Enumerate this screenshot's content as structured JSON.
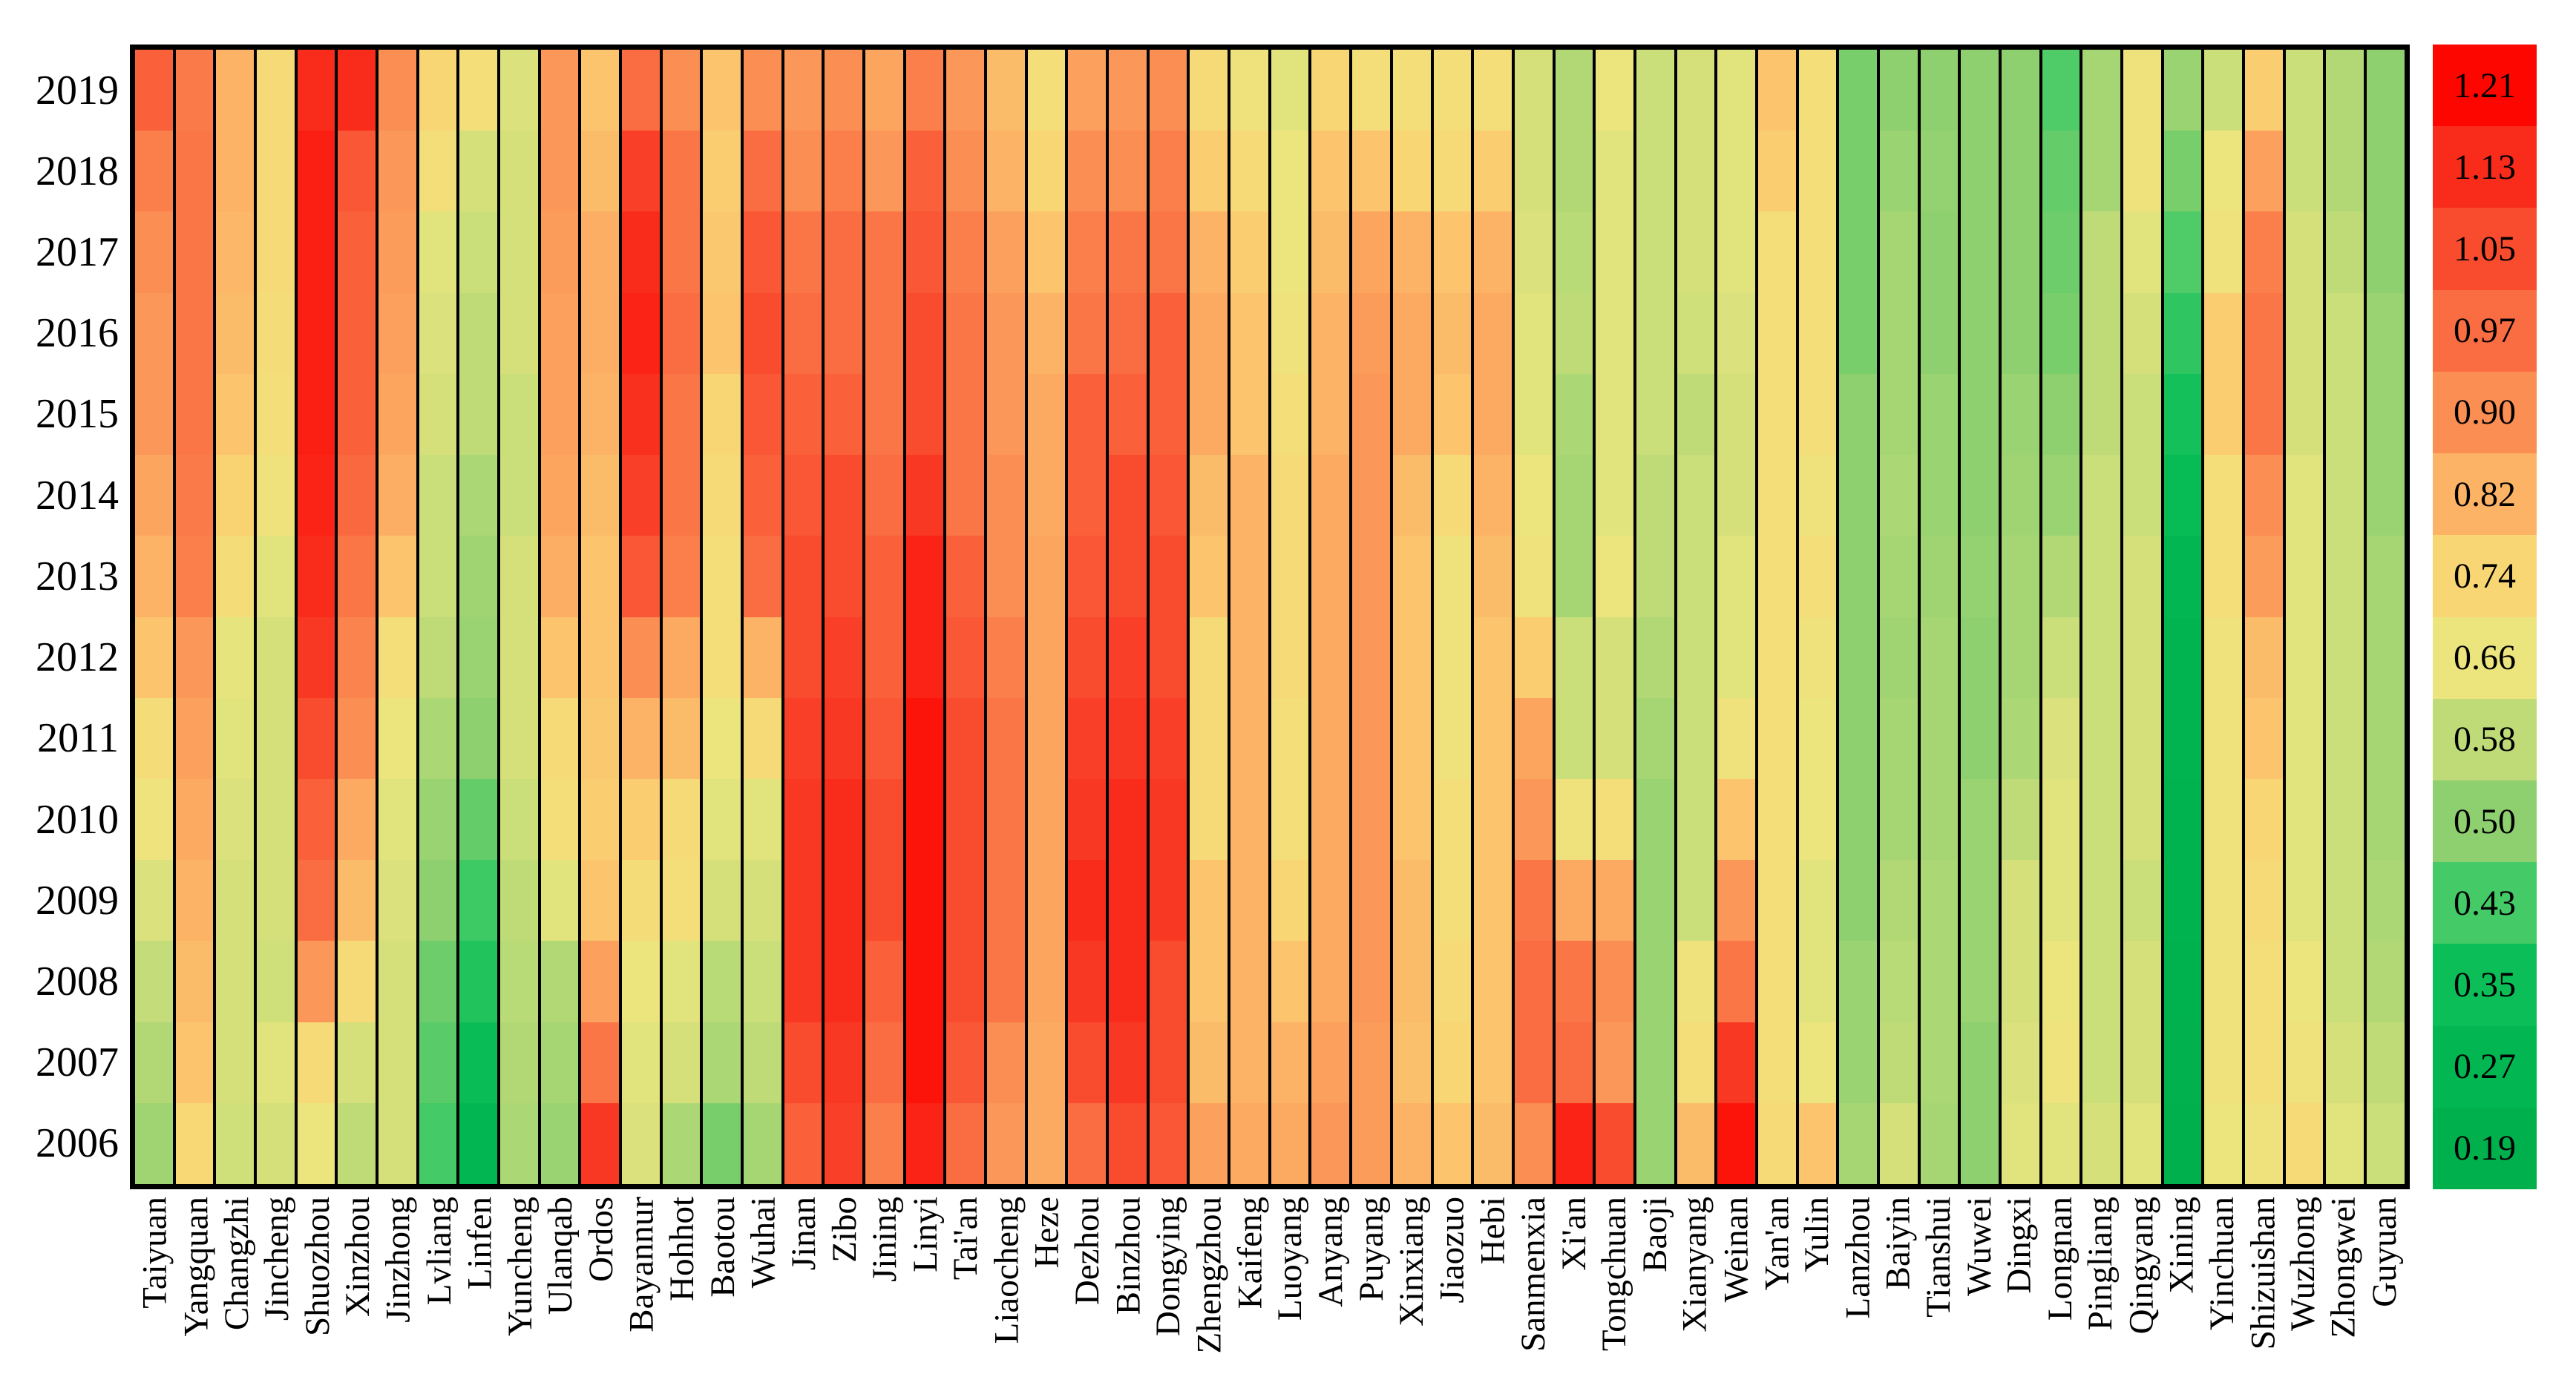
{
  "chart_data": {
    "type": "heatmap",
    "title": "",
    "xlabel": "",
    "ylabel": "",
    "grid": false,
    "legend_position": "colorbar-right",
    "years": [
      2019,
      2018,
      2017,
      2016,
      2015,
      2014,
      2013,
      2012,
      2011,
      2010,
      2009,
      2008,
      2007,
      2006
    ],
    "value_range": [
      0.19,
      1.21
    ],
    "series": [
      {
        "name": "Taiyuan",
        "values": [
          1.0,
          0.93,
          0.9,
          0.88,
          0.88,
          0.85,
          0.82,
          0.78,
          0.71,
          0.67,
          0.63,
          0.59,
          0.56,
          0.53
        ]
      },
      {
        "name": "Yangquan",
        "values": [
          0.94,
          0.95,
          0.95,
          0.95,
          0.95,
          0.94,
          0.93,
          0.88,
          0.86,
          0.84,
          0.82,
          0.8,
          0.78,
          0.73
        ]
      },
      {
        "name": "Changzhi",
        "values": [
          0.82,
          0.82,
          0.81,
          0.8,
          0.78,
          0.75,
          0.71,
          0.65,
          0.64,
          0.63,
          0.62,
          0.62,
          0.62,
          0.61
        ]
      },
      {
        "name": "Jincheng",
        "values": [
          0.72,
          0.72,
          0.72,
          0.71,
          0.7,
          0.68,
          0.64,
          0.62,
          0.62,
          0.62,
          0.62,
          0.61,
          0.64,
          0.62
        ]
      },
      {
        "name": "Shuozhou",
        "values": [
          1.13,
          1.16,
          1.16,
          1.16,
          1.16,
          1.15,
          1.13,
          1.1,
          1.05,
          1.0,
          0.97,
          0.88,
          0.72,
          0.66
        ]
      },
      {
        "name": "Xinzhou",
        "values": [
          1.13,
          1.02,
          1.0,
          1.0,
          1.0,
          0.98,
          0.95,
          0.92,
          0.9,
          0.84,
          0.8,
          0.72,
          0.62,
          0.58
        ]
      },
      {
        "name": "Jinzhong",
        "values": [
          0.9,
          0.88,
          0.87,
          0.86,
          0.85,
          0.83,
          0.78,
          0.7,
          0.66,
          0.64,
          0.63,
          0.62,
          0.62,
          0.62
        ]
      },
      {
        "name": "Lvliang",
        "values": [
          0.74,
          0.7,
          0.64,
          0.63,
          0.62,
          0.6,
          0.6,
          0.58,
          0.55,
          0.52,
          0.5,
          0.47,
          0.45,
          0.43
        ]
      },
      {
        "name": "Linfen",
        "values": [
          0.7,
          0.62,
          0.6,
          0.58,
          0.58,
          0.55,
          0.53,
          0.52,
          0.5,
          0.46,
          0.42,
          0.38,
          0.33,
          0.27
        ]
      },
      {
        "name": "Yuncheng",
        "values": [
          0.63,
          0.62,
          0.62,
          0.62,
          0.6,
          0.6,
          0.62,
          0.62,
          0.62,
          0.6,
          0.58,
          0.57,
          0.56,
          0.55
        ]
      },
      {
        "name": "Ulanqab",
        "values": [
          0.88,
          0.88,
          0.87,
          0.86,
          0.86,
          0.85,
          0.83,
          0.78,
          0.72,
          0.7,
          0.64,
          0.56,
          0.54,
          0.52
        ]
      },
      {
        "name": "Ordos",
        "values": [
          0.78,
          0.8,
          0.83,
          0.83,
          0.82,
          0.8,
          0.78,
          0.78,
          0.77,
          0.76,
          0.78,
          0.86,
          0.95,
          1.1
        ]
      },
      {
        "name": "Bayannur",
        "values": [
          0.97,
          1.08,
          1.13,
          1.15,
          1.12,
          1.08,
          1.02,
          0.9,
          0.82,
          0.76,
          0.71,
          0.66,
          0.64,
          0.63
        ]
      },
      {
        "name": "Hohhot",
        "values": [
          0.9,
          0.95,
          0.95,
          0.97,
          0.95,
          0.95,
          0.93,
          0.84,
          0.8,
          0.72,
          0.7,
          0.64,
          0.62,
          0.55
        ]
      },
      {
        "name": "Baotou",
        "values": [
          0.78,
          0.76,
          0.77,
          0.78,
          0.74,
          0.72,
          0.7,
          0.7,
          0.66,
          0.64,
          0.62,
          0.57,
          0.55,
          0.48
        ]
      },
      {
        "name": "Wuhai",
        "values": [
          0.9,
          0.97,
          1.02,
          1.05,
          1.02,
          1.0,
          0.97,
          0.82,
          0.72,
          0.64,
          0.62,
          0.6,
          0.58,
          0.54
        ]
      },
      {
        "name": "Jinan",
        "values": [
          0.88,
          0.9,
          0.95,
          0.97,
          1.0,
          1.02,
          1.05,
          1.05,
          1.08,
          1.1,
          1.1,
          1.1,
          1.05,
          1.0
        ]
      },
      {
        "name": "Zibo",
        "values": [
          0.9,
          0.93,
          0.97,
          0.97,
          1.0,
          1.05,
          1.05,
          1.08,
          1.1,
          1.13,
          1.13,
          1.13,
          1.1,
          1.08
        ]
      },
      {
        "name": "Jining",
        "values": [
          0.85,
          0.88,
          0.95,
          0.95,
          0.95,
          0.97,
          1.0,
          1.0,
          1.02,
          1.05,
          1.05,
          1.0,
          0.97,
          0.93
        ]
      },
      {
        "name": "Linyi",
        "values": [
          0.93,
          1.0,
          1.02,
          1.05,
          1.05,
          1.1,
          1.15,
          1.15,
          1.18,
          1.18,
          1.18,
          1.18,
          1.18,
          1.15
        ]
      },
      {
        "name": "Tai'an",
        "values": [
          0.88,
          0.9,
          0.93,
          0.95,
          0.95,
          0.95,
          1.0,
          1.02,
          1.05,
          1.05,
          1.05,
          1.05,
          1.02,
          0.97
        ]
      },
      {
        "name": "Liaocheng",
        "values": [
          0.8,
          0.82,
          0.86,
          0.88,
          0.88,
          0.9,
          0.9,
          0.93,
          0.95,
          0.95,
          0.95,
          0.95,
          0.9,
          0.88
        ]
      },
      {
        "name": "Heze",
        "values": [
          0.7,
          0.74,
          0.78,
          0.82,
          0.84,
          0.84,
          0.85,
          0.85,
          0.85,
          0.85,
          0.85,
          0.85,
          0.84,
          0.84
        ]
      },
      {
        "name": "Dezhou",
        "values": [
          0.86,
          0.9,
          0.93,
          0.95,
          1.0,
          1.0,
          1.02,
          1.05,
          1.08,
          1.1,
          1.13,
          1.1,
          1.05,
          0.97
        ]
      },
      {
        "name": "Binzhou",
        "values": [
          0.88,
          0.9,
          0.95,
          0.97,
          1.0,
          1.05,
          1.05,
          1.08,
          1.1,
          1.13,
          1.13,
          1.13,
          1.1,
          1.05
        ]
      },
      {
        "name": "Dongying",
        "values": [
          0.9,
          0.93,
          0.95,
          1.0,
          1.0,
          1.02,
          1.05,
          1.05,
          1.08,
          1.1,
          1.1,
          1.05,
          1.05,
          1.02
        ]
      },
      {
        "name": "Zhengzhou",
        "values": [
          0.72,
          0.76,
          0.82,
          0.84,
          0.84,
          0.8,
          0.78,
          0.72,
          0.72,
          0.72,
          0.78,
          0.78,
          0.8,
          0.86
        ]
      },
      {
        "name": "Kaifeng",
        "values": [
          0.68,
          0.72,
          0.76,
          0.78,
          0.78,
          0.82,
          0.82,
          0.82,
          0.82,
          0.82,
          0.82,
          0.82,
          0.82,
          0.84
        ]
      },
      {
        "name": "Luoyang",
        "values": [
          0.64,
          0.66,
          0.66,
          0.68,
          0.7,
          0.72,
          0.72,
          0.72,
          0.7,
          0.7,
          0.74,
          0.78,
          0.82,
          0.84
        ]
      },
      {
        "name": "Anyang",
        "values": [
          0.74,
          0.78,
          0.8,
          0.82,
          0.82,
          0.84,
          0.84,
          0.84,
          0.84,
          0.84,
          0.84,
          0.84,
          0.86,
          0.88
        ]
      },
      {
        "name": "Puyang",
        "values": [
          0.7,
          0.78,
          0.85,
          0.87,
          0.88,
          0.88,
          0.88,
          0.88,
          0.88,
          0.88,
          0.88,
          0.88,
          0.87,
          0.87
        ]
      },
      {
        "name": "Xinxiang",
        "values": [
          0.7,
          0.74,
          0.82,
          0.84,
          0.84,
          0.8,
          0.78,
          0.78,
          0.78,
          0.78,
          0.8,
          0.8,
          0.79,
          0.82
        ]
      },
      {
        "name": "Jiaozuo",
        "values": [
          0.7,
          0.72,
          0.78,
          0.8,
          0.78,
          0.72,
          0.68,
          0.68,
          0.68,
          0.7,
          0.7,
          0.72,
          0.74,
          0.78
        ]
      },
      {
        "name": "Hebi",
        "values": [
          0.7,
          0.76,
          0.82,
          0.84,
          0.84,
          0.82,
          0.8,
          0.78,
          0.78,
          0.78,
          0.78,
          0.78,
          0.78,
          0.8
        ]
      },
      {
        "name": "Sanmenxia",
        "values": [
          0.62,
          0.62,
          0.63,
          0.64,
          0.64,
          0.66,
          0.68,
          0.76,
          0.85,
          0.88,
          0.95,
          0.97,
          0.97,
          0.9
        ]
      },
      {
        "name": "Xi'an",
        "values": [
          0.56,
          0.56,
          0.57,
          0.58,
          0.55,
          0.54,
          0.54,
          0.6,
          0.6,
          0.68,
          0.84,
          0.95,
          0.97,
          1.15
        ]
      },
      {
        "name": "Tongchuan",
        "values": [
          0.66,
          0.64,
          0.64,
          0.64,
          0.64,
          0.64,
          0.66,
          0.62,
          0.62,
          0.7,
          0.84,
          0.9,
          0.88,
          1.05
        ]
      },
      {
        "name": "Baoji",
        "values": [
          0.6,
          0.6,
          0.6,
          0.6,
          0.6,
          0.58,
          0.58,
          0.56,
          0.54,
          0.52,
          0.52,
          0.52,
          0.52,
          0.52
        ]
      },
      {
        "name": "Xianyang",
        "values": [
          0.62,
          0.62,
          0.62,
          0.61,
          0.58,
          0.6,
          0.6,
          0.6,
          0.6,
          0.6,
          0.6,
          0.68,
          0.7,
          0.8
        ]
      },
      {
        "name": "Weinan",
        "values": [
          0.64,
          0.64,
          0.64,
          0.63,
          0.62,
          0.62,
          0.64,
          0.64,
          0.68,
          0.78,
          0.88,
          0.95,
          1.1,
          1.18
        ]
      },
      {
        "name": "Yan'an",
        "values": [
          0.78,
          0.76,
          0.7,
          0.7,
          0.7,
          0.7,
          0.7,
          0.7,
          0.7,
          0.7,
          0.7,
          0.7,
          0.7,
          0.72
        ]
      },
      {
        "name": "Yulin",
        "values": [
          0.7,
          0.7,
          0.7,
          0.7,
          0.7,
          0.68,
          0.7,
          0.68,
          0.66,
          0.66,
          0.64,
          0.64,
          0.66,
          0.78
        ]
      },
      {
        "name": "Lanzhou",
        "values": [
          0.48,
          0.48,
          0.48,
          0.48,
          0.5,
          0.5,
          0.5,
          0.5,
          0.5,
          0.5,
          0.5,
          0.52,
          0.52,
          0.54
        ]
      },
      {
        "name": "Baiyin",
        "values": [
          0.5,
          0.52,
          0.54,
          0.54,
          0.54,
          0.55,
          0.54,
          0.53,
          0.54,
          0.54,
          0.56,
          0.57,
          0.58,
          0.62
        ]
      },
      {
        "name": "Tianshui",
        "values": [
          0.5,
          0.51,
          0.5,
          0.5,
          0.52,
          0.52,
          0.53,
          0.54,
          0.54,
          0.54,
          0.55,
          0.55,
          0.55,
          0.54
        ]
      },
      {
        "name": "Wuwei",
        "values": [
          0.5,
          0.5,
          0.5,
          0.5,
          0.5,
          0.5,
          0.51,
          0.5,
          0.5,
          0.52,
          0.52,
          0.52,
          0.5,
          0.5
        ]
      },
      {
        "name": "Dingxi",
        "values": [
          0.5,
          0.5,
          0.5,
          0.5,
          0.52,
          0.53,
          0.54,
          0.54,
          0.55,
          0.58,
          0.62,
          0.62,
          0.63,
          0.64
        ]
      },
      {
        "name": "Longnan",
        "values": [
          0.44,
          0.46,
          0.47,
          0.48,
          0.5,
          0.52,
          0.56,
          0.6,
          0.63,
          0.64,
          0.64,
          0.66,
          0.67,
          0.64
        ]
      },
      {
        "name": "Pingliang",
        "values": [
          0.54,
          0.54,
          0.58,
          0.58,
          0.58,
          0.6,
          0.6,
          0.6,
          0.6,
          0.6,
          0.6,
          0.6,
          0.6,
          0.62
        ]
      },
      {
        "name": "Qingyang",
        "values": [
          0.68,
          0.68,
          0.64,
          0.62,
          0.6,
          0.6,
          0.62,
          0.62,
          0.62,
          0.62,
          0.6,
          0.62,
          0.62,
          0.64
        ]
      },
      {
        "name": "Xining",
        "values": [
          0.52,
          0.48,
          0.44,
          0.4,
          0.36,
          0.31,
          0.27,
          0.24,
          0.23,
          0.22,
          0.22,
          0.21,
          0.2,
          0.19
        ]
      },
      {
        "name": "Yinchuan",
        "values": [
          0.6,
          0.66,
          0.68,
          0.76,
          0.76,
          0.7,
          0.7,
          0.68,
          0.68,
          0.68,
          0.68,
          0.68,
          0.68,
          0.66
        ]
      },
      {
        "name": "Shizuishan",
        "values": [
          0.76,
          0.86,
          0.93,
          0.95,
          0.95,
          0.9,
          0.87,
          0.8,
          0.78,
          0.74,
          0.72,
          0.7,
          0.7,
          0.68
        ]
      },
      {
        "name": "Wuzhong",
        "values": [
          0.6,
          0.6,
          0.62,
          0.62,
          0.62,
          0.64,
          0.64,
          0.64,
          0.64,
          0.64,
          0.64,
          0.66,
          0.68,
          0.72
        ]
      },
      {
        "name": "Zhongwei",
        "values": [
          0.56,
          0.56,
          0.58,
          0.6,
          0.6,
          0.6,
          0.6,
          0.6,
          0.6,
          0.6,
          0.6,
          0.6,
          0.62,
          0.64
        ]
      },
      {
        "name": "Guyuan",
        "values": [
          0.5,
          0.5,
          0.5,
          0.52,
          0.52,
          0.52,
          0.54,
          0.54,
          0.54,
          0.54,
          0.55,
          0.56,
          0.58,
          0.6
        ]
      }
    ],
    "colorbar": {
      "tick_labels": [
        "1.21",
        "1.13",
        "1.05",
        "0.97",
        "0.90",
        "0.82",
        "0.74",
        "0.66",
        "0.58",
        "0.50",
        "0.43",
        "0.35",
        "0.27",
        "0.19"
      ],
      "segment_colors": [
        "#fe0600",
        "#f92c1c",
        "#f94b2e",
        "#fa6c41",
        "#fb8e53",
        "#fcb366",
        "#f9d674",
        "#ece57e",
        "#bedb78",
        "#8ed06f",
        "#44ca66",
        "#0cbe58",
        "#02b751",
        "#00b04c"
      ]
    }
  },
  "style": {
    "background": "#ffffff",
    "cell_border_color": "#000000",
    "label_color": "#000000"
  }
}
